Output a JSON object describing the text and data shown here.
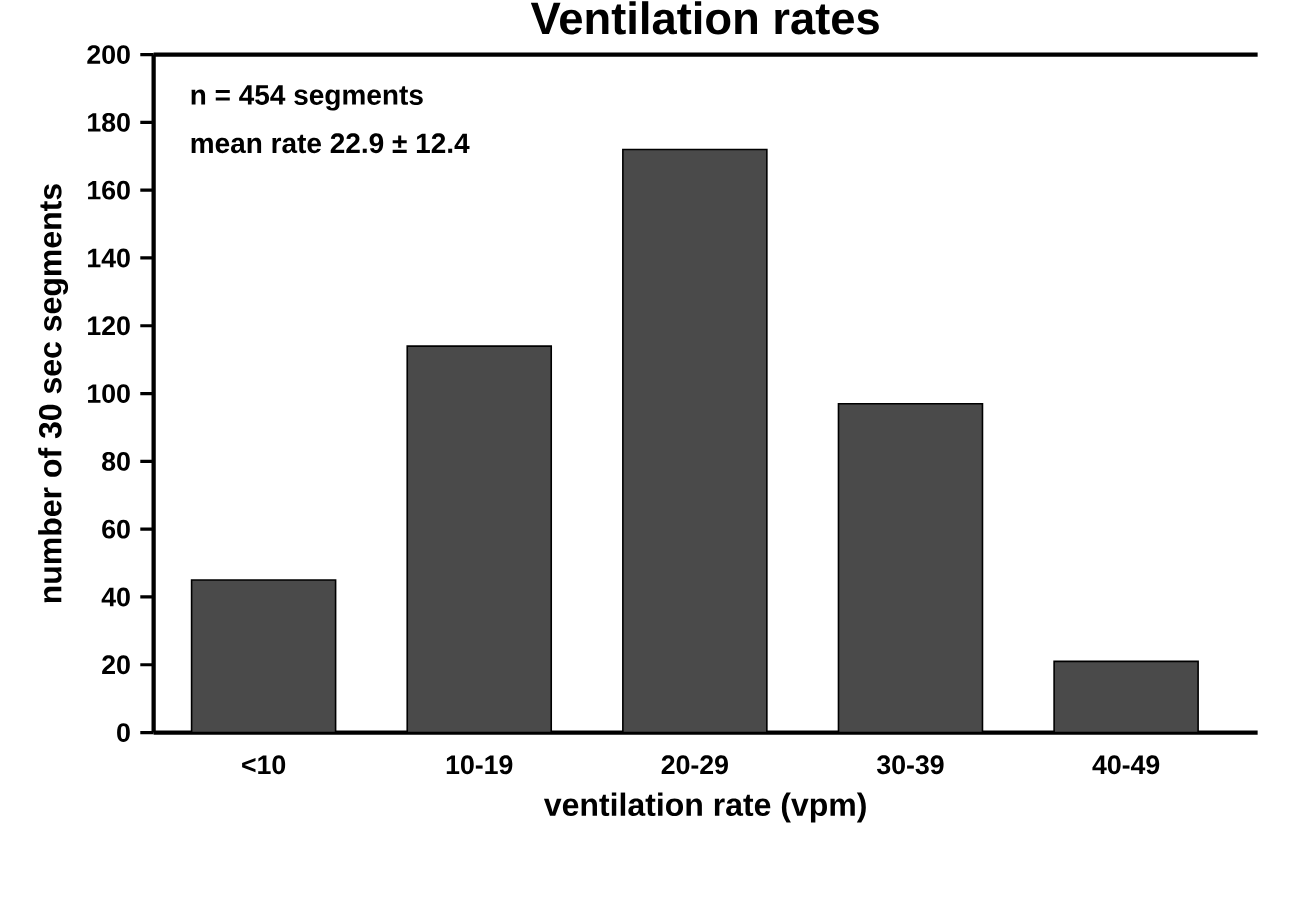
{
  "chart_data": {
    "type": "bar",
    "title": "Ventilation rates",
    "xlabel": "ventilation rate (vpm)",
    "ylabel": "number of 30 sec segments",
    "categories": [
      "<10",
      "10-19",
      "20-29",
      "30-39",
      "40-49"
    ],
    "values": [
      45,
      114,
      172,
      97,
      21
    ],
    "color": "#4a4a4a",
    "ylim": [
      0,
      200
    ],
    "yticks": [
      0,
      20,
      40,
      60,
      80,
      100,
      120,
      140,
      160,
      180,
      200
    ],
    "annotations": [
      "n = 454 segments",
      "mean rate 22.9 ± 12.4"
    ]
  }
}
